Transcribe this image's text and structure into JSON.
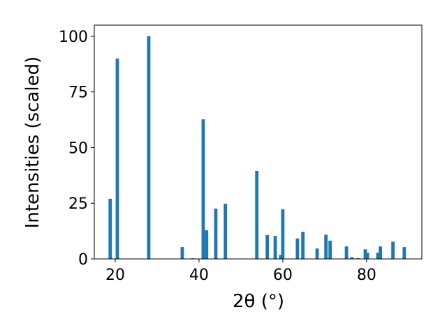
{
  "chart_data": {
    "type": "bar",
    "xlabel": "2θ (°)",
    "ylabel": "Intensities (scaled)",
    "x": [
      18.8,
      20.5,
      28.0,
      36.0,
      38.5,
      41.0,
      41.8,
      44.0,
      46.3,
      53.8,
      56.3,
      58.2,
      59.5,
      60.0,
      63.5,
      64.8,
      68.2,
      70.3,
      71.3,
      75.2,
      76.5,
      78.0,
      79.7,
      80.2,
      82.7,
      83.3,
      86.3,
      89.0
    ],
    "values": [
      27,
      90,
      100,
      5.3,
      0.3,
      62.7,
      12.9,
      22.6,
      24.8,
      39.5,
      10.7,
      10.3,
      1.8,
      22.3,
      9.2,
      12.2,
      4.7,
      10.9,
      8.2,
      5.6,
      0.8,
      0.4,
      4.3,
      2.8,
      2.8,
      5.6,
      7.8,
      5.3
    ],
    "color": "#1f77b4",
    "xlim": [
      15,
      93.2
    ],
    "xticks": [
      20,
      40,
      60,
      80
    ],
    "ylim": [
      0,
      105
    ],
    "yticks": [
      0,
      25,
      50,
      75,
      100
    ]
  }
}
